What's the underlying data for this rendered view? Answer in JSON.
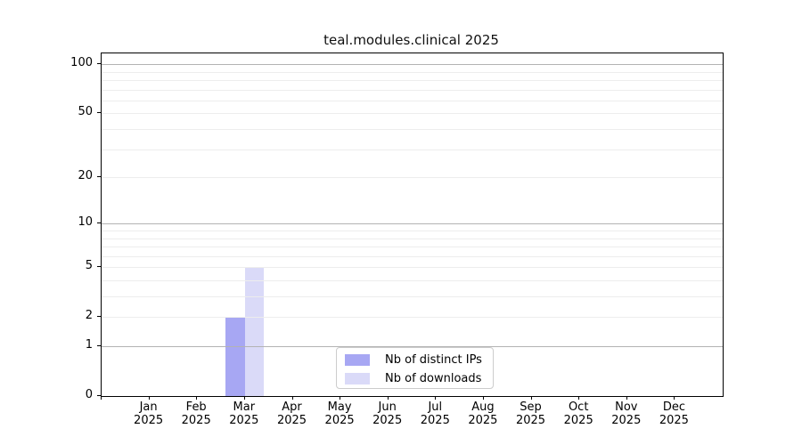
{
  "chart_data": {
    "type": "bar",
    "title": "teal.modules.clinical 2025",
    "categories": [
      "Jan",
      "Feb",
      "Mar",
      "Apr",
      "May",
      "Jun",
      "Jul",
      "Aug",
      "Sep",
      "Oct",
      "Nov",
      "Dec"
    ],
    "year_label": "2025",
    "series": [
      {
        "name": "Nb of distinct IPs",
        "color": "#a7a7f3",
        "values": [
          0,
          0,
          2,
          0,
          0,
          0,
          0,
          0,
          0,
          0,
          0,
          0
        ]
      },
      {
        "name": "Nb of downloads",
        "color": "#dadaf8",
        "values": [
          0,
          0,
          5,
          0,
          0,
          0,
          0,
          0,
          0,
          0,
          0,
          0
        ]
      }
    ],
    "y_scale": "log1p",
    "ylim": [
      0,
      116.5
    ],
    "y_ticks": [
      100,
      50,
      20,
      10,
      5,
      2,
      1,
      0
    ],
    "major_gridlines": [
      1,
      10,
      100
    ],
    "minor_gridlines": [
      2,
      3,
      4,
      5,
      6,
      7,
      8,
      9,
      20,
      30,
      40,
      50,
      60,
      70,
      80,
      90
    ],
    "legend_position": "lower center",
    "colors": {
      "major_grid": "#b3b3b3",
      "minor_grid": "#ededed",
      "axis": "#000000"
    }
  }
}
